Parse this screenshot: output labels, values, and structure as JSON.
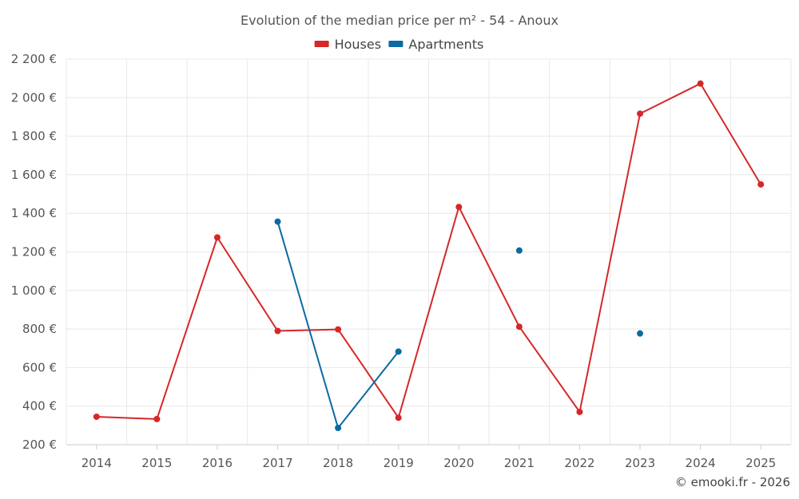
{
  "chart_data": {
    "type": "line",
    "title": "Evolution of the median price per m² - 54 - Anoux",
    "categories": [
      "2014",
      "2015",
      "2016",
      "2017",
      "2018",
      "2019",
      "2020",
      "2021",
      "2022",
      "2023",
      "2024",
      "2025"
    ],
    "series": [
      {
        "name": "Houses",
        "color": "#d62728",
        "values": [
          345,
          333,
          1275,
          790,
          798,
          340,
          1433,
          812,
          370,
          1917,
          2073,
          1550
        ]
      },
      {
        "name": "Apartments",
        "color": "#0b6aa2",
        "values": [
          null,
          null,
          null,
          1357,
          287,
          683,
          null,
          1207,
          null,
          777,
          null,
          null
        ]
      }
    ],
    "ylim": [
      200,
      2200
    ],
    "yticks": [
      200,
      400,
      600,
      800,
      1000,
      1200,
      1400,
      1600,
      1800,
      2000,
      2200
    ],
    "ytick_labels": [
      "200 €",
      "400 €",
      "600 €",
      "800 €",
      "1 000 €",
      "1 200 €",
      "1 400 €",
      "1 600 €",
      "1 800 €",
      "2 000 €",
      "2 200 €"
    ],
    "xlabel": "",
    "ylabel": "",
    "grid": true,
    "legend_position": "top-center"
  },
  "credit": "© emooki.fr - 2026"
}
